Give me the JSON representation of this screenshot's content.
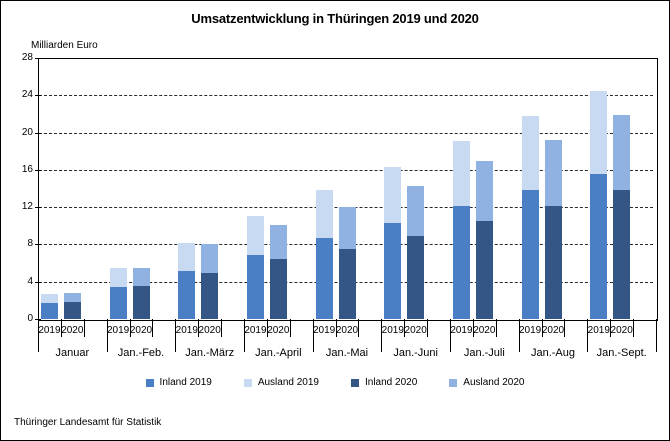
{
  "title": "Umsatzentwicklung in Thüringen 2019 und 2020",
  "y_axis_label": "Milliarden Euro",
  "footer": "Thüringer Landesamt für Statistik",
  "chart_data": {
    "type": "bar",
    "stacked": true,
    "title": "Umsatzentwicklung in Thüringen 2019 und 2020",
    "ylabel": "Milliarden Euro",
    "ylim": [
      0,
      28
    ],
    "ytick_step": 4,
    "grid": "horizontal-dashed",
    "legend_position": "bottom",
    "categories": [
      "Januar",
      "Jan.-Feb.",
      "Jan.-März",
      "Jan.-April",
      "Jan.-Mai",
      "Jan.-Juni",
      "Jan.-Juli",
      "Jan.-Aug",
      "Jan.-Sept."
    ],
    "bar_year_labels": [
      "2019",
      "2020"
    ],
    "series": [
      {
        "name": "Inland 2019",
        "bar": "2019",
        "stack_order": 0,
        "color": "#4A7EC5",
        "values": [
          1.7,
          3.4,
          5.1,
          6.9,
          8.7,
          10.3,
          12.1,
          13.8,
          15.6
        ]
      },
      {
        "name": "Ausland 2019",
        "bar": "2019",
        "stack_order": 1,
        "color": "#C8DAF1",
        "values": [
          1.0,
          2.1,
          3.1,
          4.1,
          5.1,
          6.0,
          7.0,
          8.0,
          8.9
        ]
      },
      {
        "name": "Inland 2020",
        "bar": "2020",
        "stack_order": 0,
        "color": "#335687",
        "values": [
          1.8,
          3.5,
          4.9,
          6.4,
          7.5,
          8.9,
          10.5,
          12.1,
          13.8
        ]
      },
      {
        "name": "Ausland 2020",
        "bar": "2020",
        "stack_order": 1,
        "color": "#8FB2E2",
        "values": [
          1.0,
          2.0,
          3.1,
          3.7,
          4.5,
          5.4,
          6.5,
          7.1,
          8.1
        ]
      }
    ]
  },
  "legend": {
    "items": [
      {
        "label": "Inland 2019",
        "color": "#4A7EC5"
      },
      {
        "label": "Ausland 2019",
        "color": "#C8DAF1"
      },
      {
        "label": "Inland 2020",
        "color": "#335687"
      },
      {
        "label": "Ausland 2020",
        "color": "#8FB2E2"
      }
    ]
  }
}
